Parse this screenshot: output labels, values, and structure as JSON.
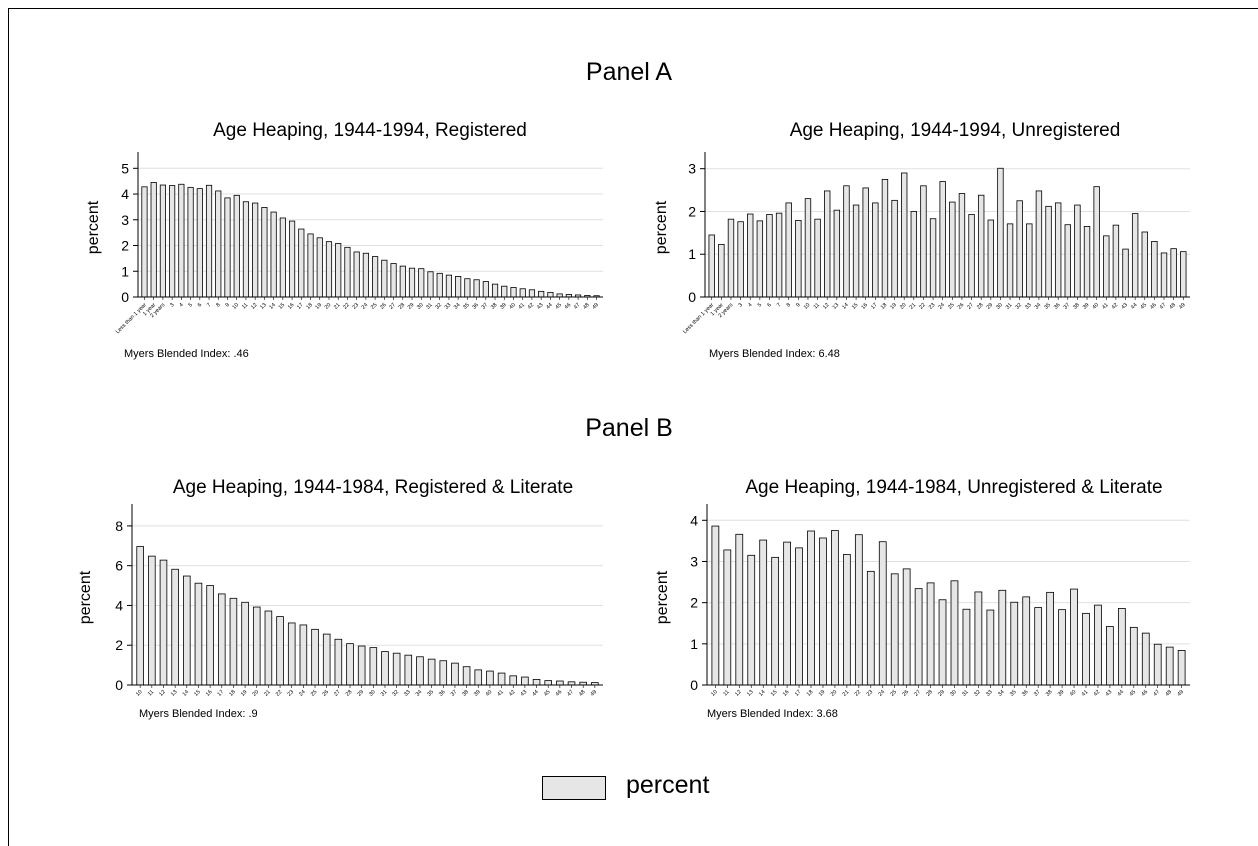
{
  "figure": {
    "panel_a_title": "Panel A",
    "panel_b_title": "Panel B",
    "legend_label": "percent",
    "bar_fill": "#e6e6e6",
    "bar_stroke": "#000000",
    "grid_color": "#e0e0e0"
  },
  "chart_data": [
    {
      "id": "a1",
      "type": "bar",
      "title": "Age Heaping, 1944-1994, Registered",
      "ylabel": "percent",
      "ylim": [
        0,
        5.4
      ],
      "yticks": [
        0,
        1,
        2,
        3,
        4,
        5
      ],
      "grid": true,
      "note": "Myers Blended Index: .46",
      "categories": [
        "Less than 1 year",
        "1 year",
        "2 years",
        "3",
        "4",
        "5",
        "6",
        "7",
        "8",
        "9",
        "10",
        "11",
        "12",
        "13",
        "14",
        "15",
        "16",
        "17",
        "18",
        "19",
        "20",
        "21",
        "22",
        "23",
        "24",
        "25",
        "26",
        "27",
        "28",
        "29",
        "30",
        "31",
        "32",
        "33",
        "34",
        "35",
        "36",
        "37",
        "38",
        "39",
        "40",
        "41",
        "42",
        "43",
        "44",
        "45",
        "46",
        "47",
        "48",
        "49"
      ],
      "values": [
        4.28,
        4.45,
        4.35,
        4.33,
        4.38,
        4.26,
        4.21,
        4.34,
        4.12,
        3.85,
        3.95,
        3.7,
        3.65,
        3.48,
        3.3,
        3.07,
        2.95,
        2.64,
        2.45,
        2.3,
        2.15,
        2.08,
        1.93,
        1.75,
        1.7,
        1.57,
        1.43,
        1.3,
        1.2,
        1.12,
        1.1,
        0.98,
        0.92,
        0.85,
        0.8,
        0.71,
        0.67,
        0.6,
        0.5,
        0.42,
        0.37,
        0.32,
        0.28,
        0.22,
        0.18,
        0.12,
        0.1,
        0.08,
        0.06,
        0.05
      ]
    },
    {
      "id": "a2",
      "type": "bar",
      "title": "Age Heaping, 1944-1994, Unregistered",
      "ylabel": "percent",
      "ylim": [
        0,
        3.25
      ],
      "yticks": [
        0,
        1,
        2,
        3
      ],
      "grid": true,
      "note": "Myers Blended Index: 6.48",
      "categories": [
        "Less than 1 year",
        "1 year",
        "2 years",
        "3",
        "4",
        "5",
        "6",
        "7",
        "8",
        "9",
        "10",
        "11",
        "12",
        "13",
        "14",
        "15",
        "16",
        "17",
        "18",
        "19",
        "20",
        "21",
        "22",
        "23",
        "24",
        "25",
        "26",
        "27",
        "28",
        "29",
        "30",
        "31",
        "32",
        "33",
        "34",
        "35",
        "36",
        "37",
        "38",
        "39",
        "40",
        "41",
        "42",
        "43",
        "44",
        "45",
        "46",
        "47",
        "48",
        "49"
      ],
      "values": [
        1.45,
        1.23,
        1.82,
        1.76,
        1.94,
        1.78,
        1.93,
        1.96,
        2.2,
        1.79,
        2.3,
        1.82,
        2.48,
        2.03,
        2.6,
        2.15,
        2.55,
        2.2,
        2.75,
        2.26,
        2.9,
        2.0,
        2.6,
        1.83,
        2.7,
        2.22,
        2.42,
        1.93,
        2.38,
        1.8,
        3.01,
        1.71,
        2.25,
        1.71,
        2.48,
        2.12,
        2.2,
        1.69,
        2.15,
        1.65,
        2.58,
        1.43,
        1.68,
        1.12,
        1.95,
        1.52,
        1.3,
        1.03,
        1.13,
        1.06
      ]
    },
    {
      "id": "b1",
      "type": "bar",
      "title": "Age Heaping, 1944-1984, Registered & Literate",
      "ylabel": "percent",
      "ylim": [
        0,
        8.8
      ],
      "yticks": [
        0,
        2,
        4,
        6,
        8
      ],
      "grid": true,
      "note": "Myers Blended Index: .9",
      "categories": [
        "10",
        "11",
        "12",
        "13",
        "14",
        "15",
        "16",
        "17",
        "18",
        "19",
        "20",
        "21",
        "22",
        "23",
        "24",
        "25",
        "26",
        "27",
        "28",
        "29",
        "30",
        "31",
        "32",
        "33",
        "34",
        "35",
        "36",
        "37",
        "38",
        "39",
        "40",
        "41",
        "42",
        "43",
        "44",
        "45",
        "46",
        "47",
        "48",
        "49"
      ],
      "values": [
        6.96,
        6.48,
        6.28,
        5.82,
        5.48,
        5.12,
        5.0,
        4.58,
        4.36,
        4.16,
        3.92,
        3.72,
        3.44,
        3.12,
        3.02,
        2.8,
        2.56,
        2.3,
        2.08,
        1.96,
        1.88,
        1.68,
        1.6,
        1.5,
        1.42,
        1.3,
        1.22,
        1.1,
        0.92,
        0.76,
        0.7,
        0.6,
        0.46,
        0.4,
        0.28,
        0.22,
        0.2,
        0.16,
        0.14,
        0.12
      ]
    },
    {
      "id": "b2",
      "type": "bar",
      "title": "Age Heaping, 1944-1984, Unregistered & Literate",
      "ylabel": "percent",
      "ylim": [
        0,
        4.25
      ],
      "yticks": [
        0,
        1,
        2,
        3,
        4
      ],
      "grid": true,
      "note": "Myers Blended Index: 3.68",
      "categories": [
        "10",
        "11",
        "12",
        "13",
        "14",
        "15",
        "16",
        "17",
        "18",
        "19",
        "20",
        "21",
        "22",
        "23",
        "24",
        "25",
        "26",
        "27",
        "28",
        "29",
        "30",
        "31",
        "32",
        "33",
        "34",
        "35",
        "36",
        "37",
        "38",
        "39",
        "40",
        "41",
        "42",
        "43",
        "44",
        "45",
        "46",
        "47",
        "48",
        "49"
      ],
      "values": [
        3.86,
        3.28,
        3.66,
        3.15,
        3.52,
        3.1,
        3.47,
        3.33,
        3.74,
        3.57,
        3.75,
        3.17,
        3.65,
        2.76,
        3.48,
        2.7,
        2.82,
        2.34,
        2.48,
        2.07,
        2.53,
        1.84,
        2.26,
        1.82,
        2.3,
        2.01,
        2.14,
        1.88,
        2.25,
        1.83,
        2.33,
        1.74,
        1.94,
        1.42,
        1.86,
        1.4,
        1.26,
        0.99,
        0.92,
        0.84
      ]
    }
  ]
}
